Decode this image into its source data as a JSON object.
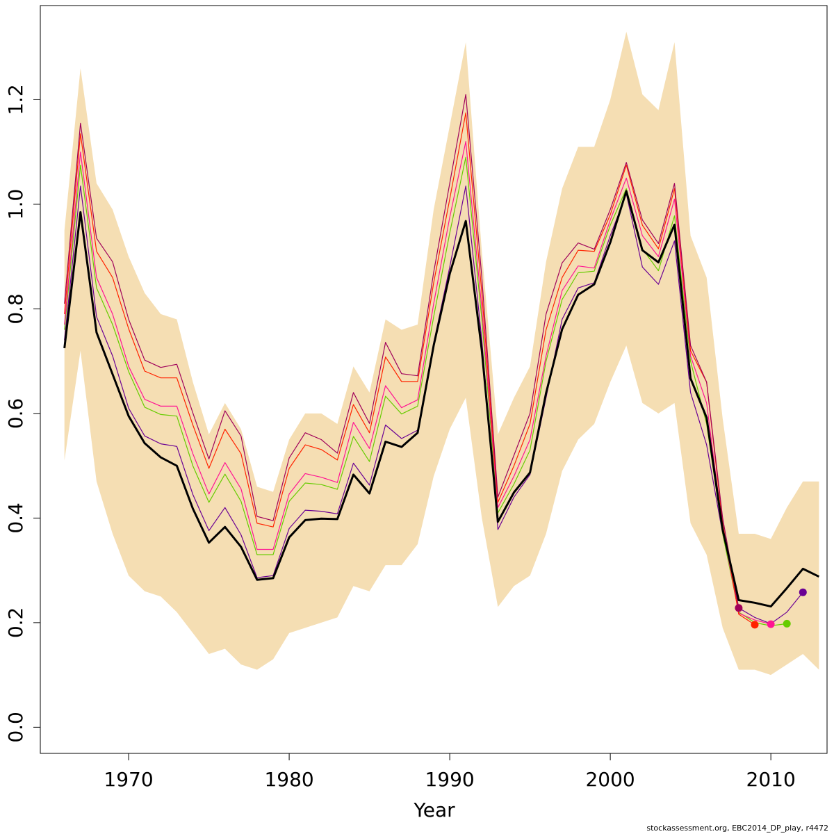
{
  "chart_data": {
    "type": "line",
    "title": "",
    "xlabel": "Year",
    "ylabel": "",
    "xlim": [
      1964.5,
      2013.5
    ],
    "ylim": [
      -0.05,
      1.38
    ],
    "xticks": [
      1970,
      1980,
      1990,
      2000,
      2010
    ],
    "yticks": [
      0.0,
      0.2,
      0.4,
      0.6,
      0.8,
      1.0,
      1.2
    ],
    "grid": false,
    "legend": "none",
    "band": {
      "color": "#f5deb3",
      "x": [
        1966,
        1967,
        1968,
        1969,
        1970,
        1971,
        1972,
        1973,
        1974,
        1975,
        1976,
        1977,
        1978,
        1979,
        1980,
        1981,
        1982,
        1983,
        1984,
        1985,
        1986,
        1987,
        1988,
        1989,
        1990,
        1991,
        1992,
        1993,
        1994,
        1995,
        1996,
        1997,
        1998,
        1999,
        2000,
        2001,
        2002,
        2003,
        2004,
        2005,
        2006,
        2007,
        2008,
        2009,
        2010,
        2011,
        2012,
        2013
      ],
      "upper": [
        0.95,
        1.26,
        1.04,
        0.99,
        0.9,
        0.83,
        0.79,
        0.78,
        0.66,
        0.56,
        0.62,
        0.57,
        0.46,
        0.45,
        0.55,
        0.6,
        0.6,
        0.58,
        0.69,
        0.64,
        0.78,
        0.76,
        0.77,
        0.99,
        1.15,
        1.31,
        0.91,
        0.56,
        0.63,
        0.69,
        0.89,
        1.03,
        1.11,
        1.11,
        1.2,
        1.33,
        1.21,
        1.18,
        1.31,
        0.94,
        0.86,
        0.59,
        0.37,
        0.37,
        0.36,
        0.42,
        0.47,
        0.47
      ],
      "lower": [
        0.51,
        0.72,
        0.47,
        0.37,
        0.29,
        0.26,
        0.25,
        0.22,
        0.18,
        0.14,
        0.15,
        0.12,
        0.11,
        0.13,
        0.18,
        0.19,
        0.2,
        0.21,
        0.27,
        0.26,
        0.31,
        0.31,
        0.35,
        0.48,
        0.57,
        0.63,
        0.4,
        0.23,
        0.27,
        0.29,
        0.37,
        0.49,
        0.55,
        0.58,
        0.66,
        0.73,
        0.62,
        0.6,
        0.62,
        0.39,
        0.33,
        0.19,
        0.11,
        0.11,
        0.1,
        0.12,
        0.14,
        0.11
      ]
    },
    "series": [
      {
        "color": "#000000",
        "width": 3,
        "x": [
          1966,
          1967,
          1968,
          1969,
          1970,
          1971,
          1972,
          1973,
          1974,
          1975,
          1976,
          1977,
          1978,
          1979,
          1980,
          1981,
          1982,
          1983,
          1984,
          1985,
          1986,
          1987,
          1988,
          1989,
          1990,
          1991,
          1992,
          1993,
          1994,
          1995,
          1996,
          1997,
          1998,
          1999,
          2000,
          2001,
          2002,
          2003,
          2004,
          2005,
          2006,
          2007,
          2008,
          2009,
          2010,
          2011,
          2012,
          2013
        ],
        "values": [
          0.725,
          0.985,
          0.755,
          0.675,
          0.595,
          0.543,
          0.516,
          0.5,
          0.418,
          0.353,
          0.383,
          0.345,
          0.282,
          0.285,
          0.363,
          0.396,
          0.399,
          0.398,
          0.483,
          0.447,
          0.546,
          0.536,
          0.563,
          0.73,
          0.867,
          0.968,
          0.72,
          0.393,
          0.449,
          0.487,
          0.639,
          0.761,
          0.827,
          0.847,
          0.927,
          1.025,
          0.912,
          0.889,
          0.961,
          0.667,
          0.592,
          0.378,
          0.243,
          0.238,
          0.231,
          0.266,
          0.303,
          0.288
        ]
      },
      {
        "color": "#6a0094",
        "width": 1.2,
        "x": [
          1966,
          1967,
          1968,
          1969,
          1970,
          1971,
          1972,
          1973,
          1974,
          1975,
          1976,
          1977,
          1978,
          1979,
          1980,
          1981,
          1982,
          1983,
          1984,
          1985,
          1986,
          1987,
          1988,
          1989,
          1990,
          1991,
          1992,
          1993,
          1994,
          1995,
          1996,
          1997,
          1998,
          1999,
          2000,
          2001,
          2002,
          2003,
          2004,
          2005,
          2006,
          2007,
          2008,
          2009,
          2010,
          2011,
          2012
        ],
        "values": [
          0.74,
          1.035,
          0.785,
          0.71,
          0.61,
          0.557,
          0.542,
          0.537,
          0.445,
          0.376,
          0.42,
          0.368,
          0.286,
          0.29,
          0.38,
          0.415,
          0.413,
          0.408,
          0.505,
          0.463,
          0.578,
          0.552,
          0.568,
          0.735,
          0.88,
          1.035,
          0.74,
          0.378,
          0.44,
          0.483,
          0.63,
          0.78,
          0.84,
          0.85,
          0.94,
          1.02,
          0.88,
          0.847,
          0.93,
          0.64,
          0.54,
          0.37,
          0.228,
          0.21,
          0.198,
          0.22,
          0.258
        ],
        "end_marker": [
          2012,
          0.258
        ]
      },
      {
        "color": "#66cc00",
        "width": 1.2,
        "x": [
          1966,
          1967,
          1968,
          1969,
          1970,
          1971,
          1972,
          1973,
          1974,
          1975,
          1976,
          1977,
          1978,
          1979,
          1980,
          1981,
          1982,
          1983,
          1984,
          1985,
          1986,
          1987,
          1988,
          1989,
          1990,
          1991,
          1992,
          1993,
          1994,
          1995,
          1996,
          1997,
          1998,
          1999,
          2000,
          2001,
          2002,
          2003,
          2004,
          2005,
          2006,
          2007,
          2008,
          2009,
          2010,
          2011
        ],
        "values": [
          0.76,
          1.075,
          0.84,
          0.77,
          0.68,
          0.612,
          0.598,
          0.595,
          0.5,
          0.43,
          0.484,
          0.432,
          0.33,
          0.33,
          0.432,
          0.467,
          0.464,
          0.455,
          0.556,
          0.508,
          0.633,
          0.599,
          0.614,
          0.785,
          0.945,
          1.09,
          0.78,
          0.41,
          0.465,
          0.53,
          0.7,
          0.818,
          0.869,
          0.872,
          0.96,
          1.03,
          0.915,
          0.873,
          0.978,
          0.7,
          0.58,
          0.37,
          0.22,
          0.2,
          0.194,
          0.198
        ],
        "end_marker": [
          2011,
          0.198
        ]
      },
      {
        "color": "#ff1493",
        "width": 1.2,
        "x": [
          1966,
          1967,
          1968,
          1969,
          1970,
          1971,
          1972,
          1973,
          1974,
          1975,
          1976,
          1977,
          1978,
          1979,
          1980,
          1981,
          1982,
          1983,
          1984,
          1985,
          1986,
          1987,
          1988,
          1989,
          1990,
          1991,
          1992,
          1993,
          1994,
          1995,
          1996,
          1997,
          1998,
          1999,
          2000,
          2001,
          2002,
          2003,
          2004,
          2005,
          2006,
          2007,
          2008,
          2009,
          2010
        ],
        "values": [
          0.77,
          1.1,
          0.86,
          0.79,
          0.69,
          0.627,
          0.614,
          0.614,
          0.523,
          0.446,
          0.506,
          0.456,
          0.34,
          0.34,
          0.446,
          0.485,
          0.478,
          0.468,
          0.583,
          0.533,
          0.653,
          0.611,
          0.626,
          0.81,
          0.975,
          1.12,
          0.8,
          0.42,
          0.48,
          0.55,
          0.71,
          0.835,
          0.882,
          0.878,
          0.97,
          1.05,
          0.94,
          0.9,
          1.01,
          0.71,
          0.62,
          0.38,
          0.218,
          0.205,
          0.197
        ],
        "end_marker": [
          2010,
          0.197
        ]
      },
      {
        "color": "#ff2200",
        "width": 1.2,
        "x": [
          1966,
          1967,
          1968,
          1969,
          1970,
          1971,
          1972,
          1973,
          1974,
          1975,
          1976,
          1977,
          1978,
          1979,
          1980,
          1981,
          1982,
          1983,
          1984,
          1985,
          1986,
          1987,
          1988,
          1989,
          1990,
          1991,
          1992,
          1993,
          1994,
          1995,
          1996,
          1997,
          1998,
          1999,
          2000,
          2001,
          2002,
          2003,
          2004,
          2005,
          2006,
          2007,
          2008,
          2009
        ],
        "values": [
          0.79,
          1.135,
          0.91,
          0.86,
          0.762,
          0.681,
          0.668,
          0.668,
          0.578,
          0.495,
          0.57,
          0.523,
          0.39,
          0.383,
          0.495,
          0.54,
          0.531,
          0.511,
          0.617,
          0.563,
          0.708,
          0.661,
          0.661,
          0.85,
          1.01,
          1.175,
          0.83,
          0.43,
          0.5,
          0.58,
          0.76,
          0.86,
          0.912,
          0.91,
          0.98,
          1.075,
          0.96,
          0.915,
          1.03,
          0.72,
          0.66,
          0.39,
          0.216,
          0.196
        ],
        "end_marker": [
          2009,
          0.196
        ]
      },
      {
        "color": "#a0005a",
        "width": 1.2,
        "x": [
          1966,
          1967,
          1968,
          1969,
          1970,
          1971,
          1972,
          1973,
          1974,
          1975,
          1976,
          1977,
          1978,
          1979,
          1980,
          1981,
          1982,
          1983,
          1984,
          1985,
          1986,
          1987,
          1988,
          1989,
          1990,
          1991,
          1992,
          1993,
          1994,
          1995,
          1996,
          1997,
          1998,
          1999,
          2000,
          2001,
          2002,
          2003,
          2004,
          2005,
          2006,
          2007,
          2008
        ],
        "values": [
          0.81,
          1.155,
          0.935,
          0.89,
          0.78,
          0.702,
          0.688,
          0.694,
          0.601,
          0.513,
          0.605,
          0.557,
          0.403,
          0.395,
          0.515,
          0.563,
          0.55,
          0.524,
          0.64,
          0.581,
          0.736,
          0.676,
          0.672,
          0.87,
          1.04,
          1.21,
          0.86,
          0.44,
          0.52,
          0.6,
          0.79,
          0.888,
          0.926,
          0.914,
          0.99,
          1.08,
          0.97,
          0.925,
          1.04,
          0.73,
          0.66,
          0.4,
          0.228
        ],
        "end_marker": [
          2008,
          0.228
        ]
      }
    ]
  },
  "footer": "stockassessment.org, EBC2014_DP_play, r4472"
}
